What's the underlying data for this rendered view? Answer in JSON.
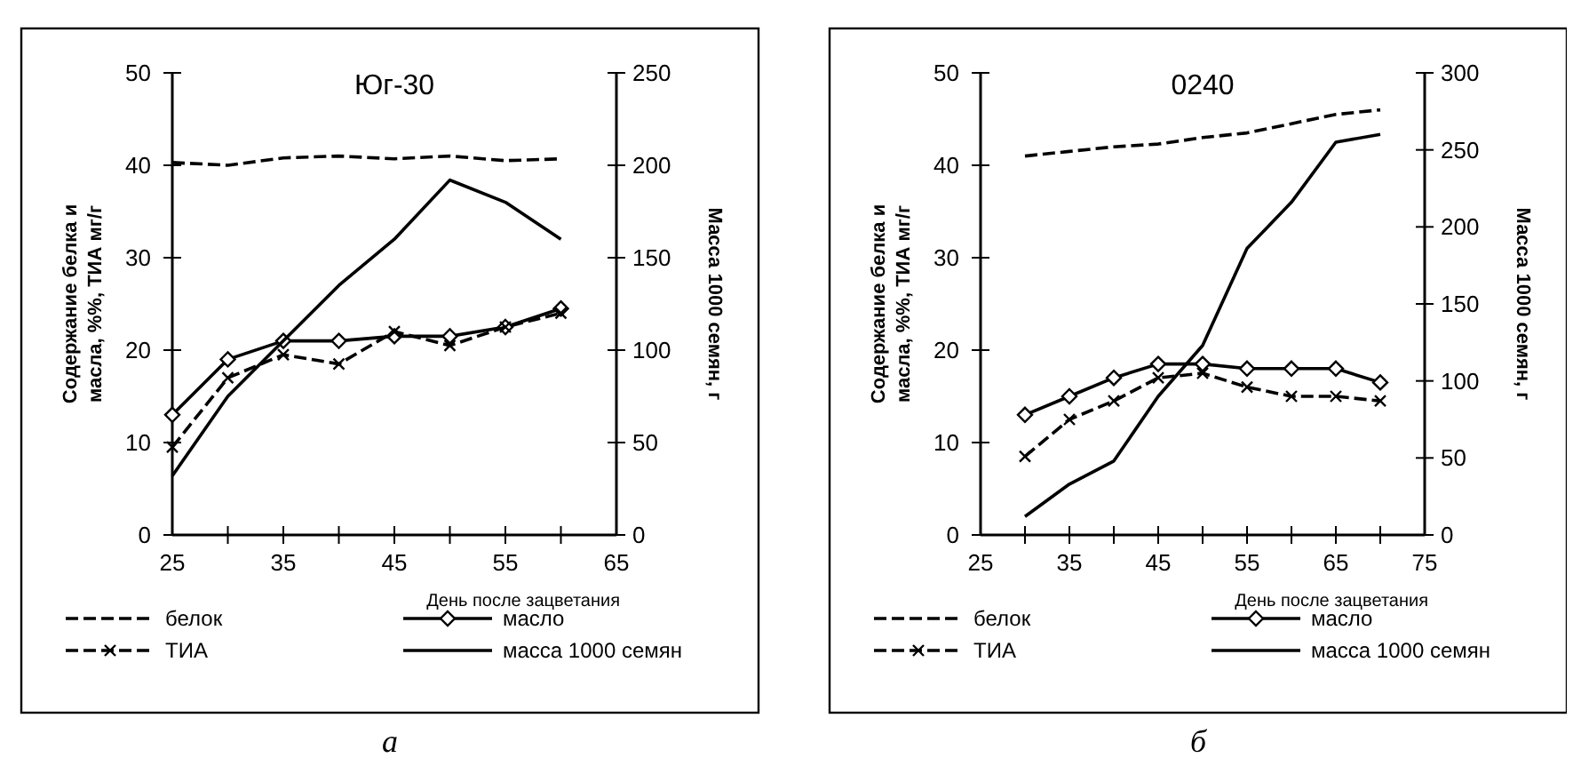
{
  "chart_data": [
    {
      "type": "line",
      "title": "Юг-30",
      "x": [
        25,
        30,
        35,
        40,
        45,
        50,
        55,
        60
      ],
      "xlabel": "День после зацветания",
      "ylabel": "Содержание белка и масла, %%, ТИА мг/г",
      "y2label": "Масса 1000 семян, г",
      "xlim": [
        25,
        65
      ],
      "xticks": [
        25,
        {
          "value": 30,
          "label": null
        },
        35,
        {
          "value": 40,
          "label": null
        },
        45,
        {
          "value": 50,
          "label": null
        },
        55,
        {
          "value": 60,
          "label": null
        },
        65
      ],
      "ylim": [
        0,
        50
      ],
      "yticks": [
        0,
        10,
        20,
        30,
        40,
        50
      ],
      "y2lim": [
        0,
        250
      ],
      "y2ticks": [
        0,
        50,
        100,
        150,
        200,
        250
      ],
      "legend": "bottom",
      "annotations": [
        "а"
      ],
      "series": [
        {
          "name": "белок",
          "color": "#000000",
          "line_style": "dashed",
          "marker": "none",
          "values": [
            40.3,
            40,
            40.8,
            41,
            40.7,
            41,
            40.5,
            40.7
          ]
        },
        {
          "name": "масло",
          "color": "#000000",
          "line_style": "solid",
          "marker": "diamond",
          "values": [
            13,
            19,
            21,
            21,
            21.5,
            21.5,
            22.5,
            24.5
          ]
        },
        {
          "name": "ТИА",
          "color": "#000000",
          "line_style": "dashed",
          "marker": "cross",
          "values": [
            9.5,
            17,
            19.5,
            18.5,
            22,
            20.5,
            22.5,
            24
          ]
        },
        {
          "name": "масса 1000 семян",
          "color": "#000000",
          "line_style": "solid",
          "marker": "none",
          "axis": "y2",
          "values": [
            32,
            75,
            105,
            135,
            160,
            192,
            180,
            160
          ]
        }
      ]
    },
    {
      "type": "line",
      "title": "0240",
      "x": [
        30,
        35,
        40,
        45,
        50,
        55,
        60,
        65,
        70
      ],
      "xlabel": "День после зацветания",
      "ylabel": "Содержание белка и масла, %%, ТИА мг/г",
      "y2label": "Масса 1000 семян, г",
      "xlim": [
        25,
        75
      ],
      "xticks": [
        25,
        {
          "value": 30,
          "label": null
        },
        35,
        {
          "value": 40,
          "label": null
        },
        45,
        {
          "value": 50,
          "label": null
        },
        55,
        {
          "value": 60,
          "label": null
        },
        65,
        {
          "value": 70,
          "label": null
        },
        75
      ],
      "ylim": [
        0,
        50
      ],
      "yticks": [
        0,
        10,
        20,
        30,
        40,
        50
      ],
      "y2lim": [
        0,
        300
      ],
      "y2ticks": [
        0,
        50,
        100,
        150,
        200,
        250,
        300
      ],
      "legend": "bottom",
      "annotations": [
        "б"
      ],
      "series": [
        {
          "name": "белок",
          "color": "#000000",
          "line_style": "dashed",
          "marker": "none",
          "values": [
            41,
            41.5,
            42,
            42.3,
            43,
            43.5,
            44.5,
            45.5,
            46
          ]
        },
        {
          "name": "масло",
          "color": "#000000",
          "line_style": "solid",
          "marker": "diamond",
          "values": [
            13,
            15,
            17,
            18.5,
            18.5,
            18,
            18,
            18,
            16.5
          ]
        },
        {
          "name": "ТИА",
          "color": "#000000",
          "line_style": "dashed",
          "marker": "cross",
          "values": [
            8.5,
            12.5,
            14.5,
            17,
            17.5,
            16,
            15,
            15,
            14.5
          ]
        },
        {
          "name": "масса 1000 семян",
          "color": "#000000",
          "line_style": "solid",
          "marker": "none",
          "axis": "y2",
          "values": [
            12,
            33,
            48,
            90,
            123,
            186,
            216,
            255,
            260
          ]
        }
      ]
    }
  ]
}
